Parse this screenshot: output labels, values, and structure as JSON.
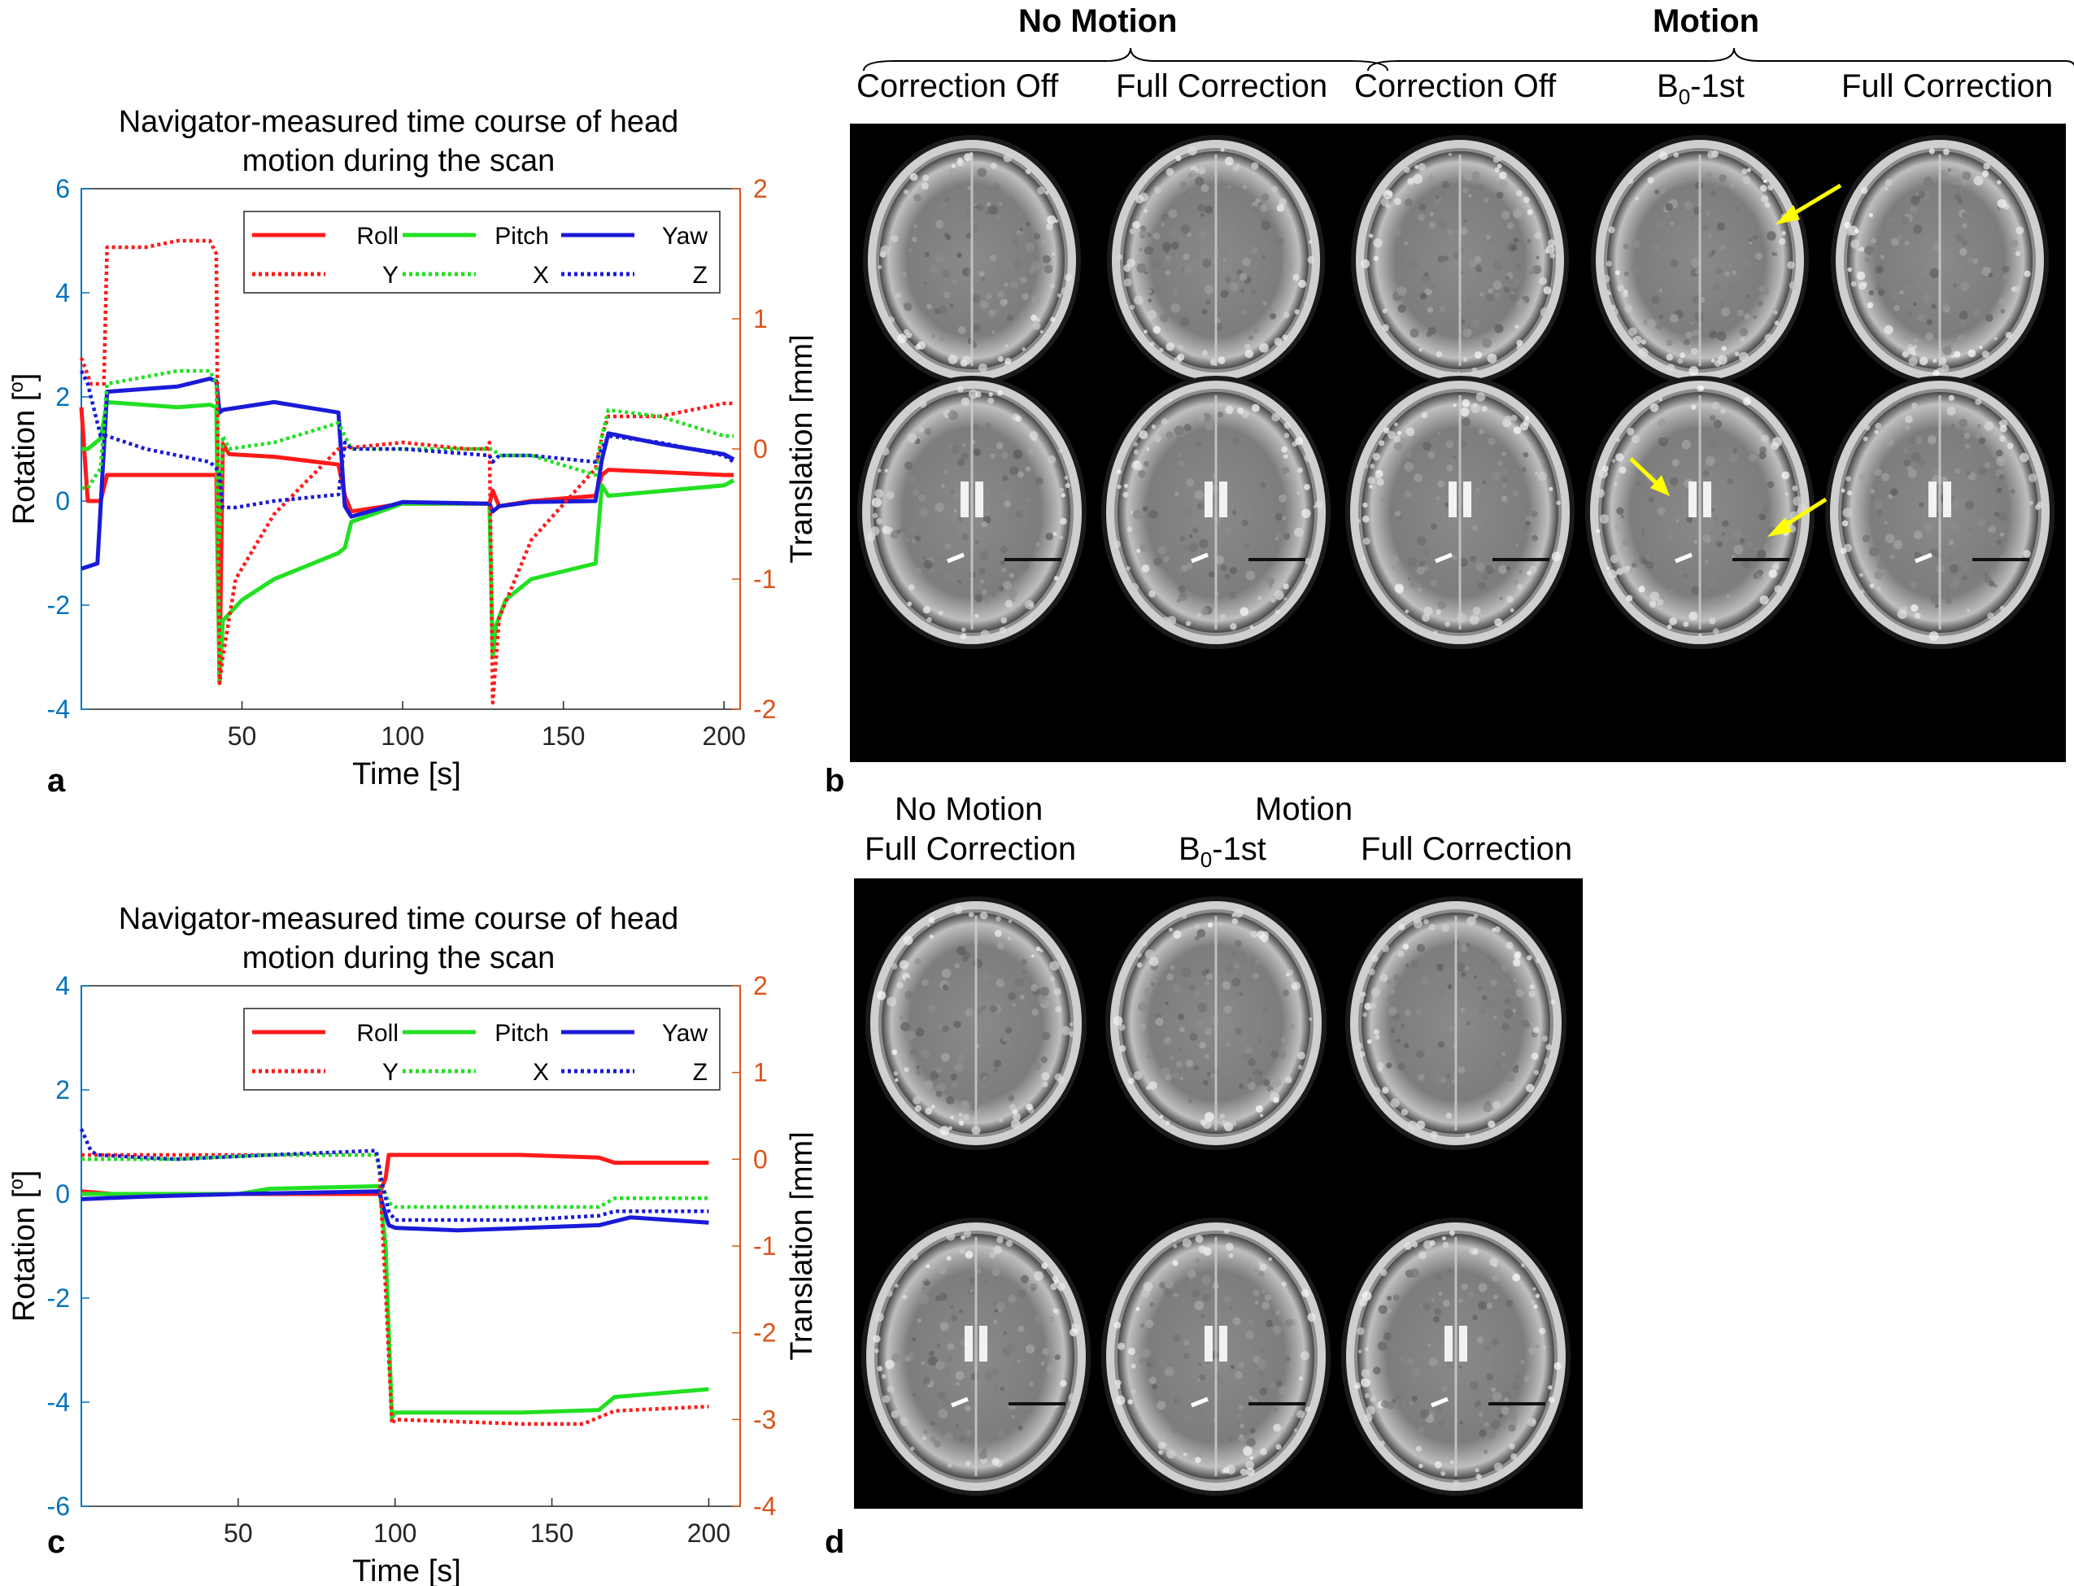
{
  "panels": {
    "a": "a",
    "b": "b",
    "c": "c",
    "d": "d"
  },
  "panel_b": {
    "group_no_motion": "No Motion",
    "group_motion": "Motion",
    "col_labels": [
      "Correction Off",
      "Full Correction",
      "Correction Off",
      "B0-1st",
      "Full Correction"
    ],
    "b0_main": "B",
    "b0_sub": "0",
    "b0_suffix": "-1st"
  },
  "panel_d": {
    "no_motion": "No Motion",
    "motion": "Motion",
    "full_correction_1": "Full Correction",
    "b0_main": "B",
    "b0_sub": "0",
    "b0_suffix": "-1st",
    "full_correction_2": "Full Correction"
  },
  "colors": {
    "red": "#ff1a1a",
    "green": "#22e022",
    "blue": "#1a1ad8",
    "left_axis": "#0072bd",
    "right_axis": "#d95319"
  },
  "chart_data": [
    {
      "type": "line",
      "panel": "a",
      "title": [
        "Navigator-measured time course of head",
        "motion during the scan"
      ],
      "xlabel": "Time [s]",
      "ylabel_left": "Rotation [o]",
      "ylabel_left_main": "Rotation [",
      "ylabel_left_sup": "o",
      "ylabel_left_end": "]",
      "ylabel_right": "Translation [mm]",
      "xlim": [
        0,
        205
      ],
      "ylim_left": [
        -4,
        6
      ],
      "ylim_right": [
        -2,
        2
      ],
      "xticks": [
        50,
        100,
        150,
        200
      ],
      "yticks_left": [
        -4,
        -2,
        0,
        2,
        4,
        6
      ],
      "yticks_right": [
        -2,
        -1,
        0,
        1,
        2
      ],
      "legend": [
        "Roll",
        "Pitch",
        "Yaw",
        "Y",
        "X",
        "Z"
      ],
      "legend_position": "top-right",
      "series": [
        {
          "name": "Roll",
          "axis": "left",
          "style": "solid",
          "color": "red",
          "x": [
            0,
            2,
            6,
            8,
            30,
            40,
            42,
            43,
            44,
            46,
            60,
            80,
            82,
            84,
            100,
            127,
            128,
            130,
            140,
            160,
            162,
            164,
            200,
            203
          ],
          "y": [
            1.8,
            0.0,
            0.0,
            0.5,
            0.5,
            0.5,
            0.5,
            -3.4,
            1.1,
            0.9,
            0.85,
            0.7,
            0.1,
            -0.2,
            -0.05,
            -0.05,
            0.2,
            -0.1,
            0.0,
            0.1,
            0.5,
            0.6,
            0.5,
            0.5
          ]
        },
        {
          "name": "Pitch",
          "axis": "left",
          "style": "solid",
          "color": "green",
          "x": [
            0,
            2,
            6,
            8,
            30,
            40,
            42,
            43,
            44,
            50,
            60,
            80,
            82,
            84,
            100,
            127,
            128,
            129,
            132,
            140,
            160,
            162,
            164,
            200,
            203
          ],
          "y": [
            1.0,
            1.0,
            1.2,
            1.9,
            1.8,
            1.85,
            1.8,
            -3.5,
            -2.3,
            -1.9,
            -1.5,
            -1.0,
            -0.9,
            -0.4,
            -0.05,
            -0.05,
            -3.0,
            -2.4,
            -1.9,
            -1.5,
            -1.2,
            0.3,
            0.1,
            0.3,
            0.4
          ]
        },
        {
          "name": "Yaw",
          "axis": "left",
          "style": "solid",
          "color": "blue",
          "x": [
            0,
            5,
            7,
            8,
            30,
            40,
            42,
            43,
            44,
            60,
            80,
            82,
            84,
            100,
            127,
            128,
            130,
            140,
            160,
            162,
            164,
            180,
            200,
            203
          ],
          "y": [
            -1.3,
            -1.2,
            1.0,
            2.1,
            2.2,
            2.35,
            2.3,
            1.7,
            1.75,
            1.9,
            1.7,
            -0.1,
            -0.3,
            -0.02,
            -0.05,
            -0.2,
            -0.1,
            -0.02,
            0.0,
            0.8,
            1.3,
            1.1,
            0.9,
            0.8
          ]
        },
        {
          "name": "Y",
          "axis": "right",
          "style": "dotted",
          "color": "red",
          "x": [
            0,
            3,
            7,
            8,
            20,
            30,
            40,
            42,
            43,
            44,
            48,
            60,
            80,
            100,
            120,
            126,
            127,
            128,
            130,
            140,
            160,
            162,
            164,
            180,
            200,
            203
          ],
          "y": [
            0.7,
            0.5,
            0.5,
            1.55,
            1.55,
            1.6,
            1.6,
            1.5,
            -1.8,
            -1.6,
            -1.0,
            -0.5,
            0.0,
            0.05,
            0.0,
            0.0,
            0.05,
            -1.95,
            -1.3,
            -0.7,
            -0.15,
            0.1,
            0.25,
            0.25,
            0.35,
            0.35
          ]
        },
        {
          "name": "X",
          "axis": "right",
          "style": "dotted",
          "color": "green",
          "x": [
            0,
            2,
            6,
            8,
            30,
            40,
            42,
            43,
            44,
            46,
            60,
            80,
            82,
            84,
            100,
            127,
            128,
            130,
            140,
            160,
            162,
            164,
            180,
            200,
            203
          ],
          "y": [
            -0.3,
            -0.3,
            -0.15,
            0.5,
            0.6,
            0.6,
            0.5,
            -0.7,
            0.1,
            0.0,
            0.05,
            0.2,
            0.1,
            0.0,
            0.0,
            0.0,
            0.0,
            -0.05,
            -0.05,
            -0.2,
            0.1,
            0.3,
            0.25,
            0.1,
            0.1
          ]
        },
        {
          "name": "Z",
          "axis": "right",
          "style": "dotted",
          "color": "blue",
          "x": [
            0,
            2,
            6,
            8,
            20,
            30,
            40,
            42,
            43,
            44,
            48,
            60,
            80,
            82,
            84,
            100,
            127,
            128,
            130,
            140,
            160,
            162,
            164,
            180,
            200,
            203
          ],
          "y": [
            0.6,
            0.5,
            0.1,
            0.1,
            0.0,
            -0.05,
            -0.1,
            -0.15,
            -0.2,
            -0.45,
            -0.45,
            -0.4,
            -0.35,
            0.05,
            0.0,
            0.0,
            -0.05,
            -0.1,
            -0.05,
            -0.05,
            -0.1,
            0.0,
            0.1,
            0.05,
            -0.05,
            -0.1
          ]
        }
      ]
    },
    {
      "type": "line",
      "panel": "c",
      "title": [
        "Navigator-measured time course of head",
        "motion during the scan"
      ],
      "xlabel": "Time [s]",
      "ylabel_left": "Rotation [o]",
      "ylabel_left_main": "Rotation [",
      "ylabel_left_sup": "o",
      "ylabel_left_end": "]",
      "ylabel_right": "Translation [mm]",
      "xlim": [
        0,
        210
      ],
      "ylim_left": [
        -6,
        4
      ],
      "ylim_right": [
        -4,
        2
      ],
      "xticks": [
        50,
        100,
        150,
        200
      ],
      "yticks_left": [
        -6,
        -4,
        -2,
        0,
        2,
        4
      ],
      "yticks_right": [
        -4,
        -3,
        -2,
        -1,
        0,
        1,
        2
      ],
      "legend": [
        "Roll",
        "Pitch",
        "Yaw",
        "Y",
        "X",
        "Z"
      ],
      "legend_position": "top-right",
      "series": [
        {
          "name": "Roll",
          "axis": "left",
          "style": "solid",
          "color": "red",
          "x": [
            0,
            10,
            50,
            95,
            97,
            98,
            100,
            140,
            165,
            170,
            200
          ],
          "y": [
            0.05,
            0.0,
            0.0,
            0.0,
            0.3,
            0.75,
            0.75,
            0.75,
            0.7,
            0.6,
            0.6
          ]
        },
        {
          "name": "Pitch",
          "axis": "left",
          "style": "solid",
          "color": "green",
          "x": [
            0,
            20,
            50,
            60,
            95,
            97,
            99,
            100,
            140,
            165,
            170,
            200
          ],
          "y": [
            0.0,
            0.0,
            0.0,
            0.1,
            0.15,
            -1.0,
            -4.3,
            -4.2,
            -4.2,
            -4.15,
            -3.9,
            -3.75
          ]
        },
        {
          "name": "Yaw",
          "axis": "left",
          "style": "solid",
          "color": "blue",
          "x": [
            0,
            20,
            50,
            95,
            96,
            98,
            100,
            120,
            165,
            175,
            200
          ],
          "y": [
            -0.1,
            -0.05,
            0.0,
            0.05,
            -0.2,
            -0.6,
            -0.65,
            -0.7,
            -0.6,
            -0.45,
            -0.55
          ]
        },
        {
          "name": "Y",
          "axis": "right",
          "style": "dotted",
          "color": "red",
          "x": [
            0,
            30,
            60,
            94,
            95,
            97,
            99,
            100,
            140,
            160,
            170,
            200
          ],
          "y": [
            0.05,
            0.05,
            0.05,
            0.05,
            -0.1,
            -1.5,
            -3.05,
            -3.0,
            -3.05,
            -3.05,
            -2.9,
            -2.85
          ]
        },
        {
          "name": "X",
          "axis": "right",
          "style": "dotted",
          "color": "green",
          "x": [
            0,
            30,
            60,
            94,
            96,
            98,
            100,
            140,
            165,
            170,
            200
          ],
          "y": [
            0.0,
            0.0,
            0.05,
            0.05,
            -0.3,
            -0.5,
            -0.55,
            -0.55,
            -0.55,
            -0.45,
            -0.45
          ]
        },
        {
          "name": "Z",
          "axis": "right",
          "style": "dotted",
          "color": "blue",
          "x": [
            0,
            3,
            5,
            30,
            60,
            94,
            96,
            98,
            100,
            140,
            165,
            170,
            200
          ],
          "y": [
            0.35,
            0.1,
            0.05,
            0.0,
            0.05,
            0.1,
            -0.3,
            -0.6,
            -0.7,
            -0.7,
            -0.65,
            -0.6,
            -0.6
          ]
        }
      ]
    }
  ]
}
